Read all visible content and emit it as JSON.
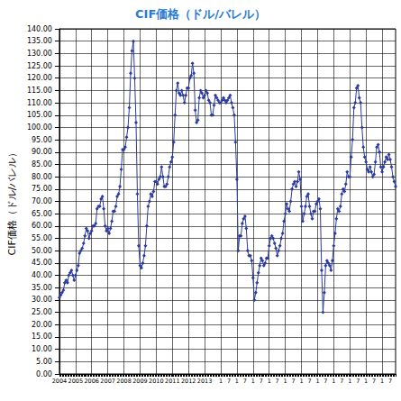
{
  "chart_data": {
    "type": "line",
    "title": "CIF価格（ドル/バレル）",
    "ylabel": "CIF価格（ドル/バレル）",
    "color": "#2b3a9e",
    "marker": "diamond",
    "grid": true,
    "ylim": [
      0,
      140
    ],
    "yticks": [
      {
        "value": 0,
        "label": "0.00"
      },
      {
        "value": 5,
        "label": "5.00"
      },
      {
        "value": 10,
        "label": "10.00"
      },
      {
        "value": 15,
        "label": "15.00"
      },
      {
        "value": 20,
        "label": "20.00"
      },
      {
        "value": 25,
        "label": "25.00"
      },
      {
        "value": 30,
        "label": "30.00"
      },
      {
        "value": 35,
        "label": "35.00"
      },
      {
        "value": 40,
        "label": "40.00"
      },
      {
        "value": 45,
        "label": "45.00"
      },
      {
        "value": 50,
        "label": "50.00"
      },
      {
        "value": 55,
        "label": "55.00"
      },
      {
        "value": 60,
        "label": "60.00"
      },
      {
        "value": 65,
        "label": "65.00"
      },
      {
        "value": 70,
        "label": "70.00"
      },
      {
        "value": 75,
        "label": "75.00"
      },
      {
        "value": 80,
        "label": "80.00"
      },
      {
        "value": 85,
        "label": "85.00"
      },
      {
        "value": 90,
        "label": "90.00"
      },
      {
        "value": 95,
        "label": "95.00"
      },
      {
        "value": 100,
        "label": "100.00"
      },
      {
        "value": 105,
        "label": "105.00"
      },
      {
        "value": 110,
        "label": "110.00"
      },
      {
        "value": 115,
        "label": "115.00"
      },
      {
        "value": 120,
        "label": "120.00"
      },
      {
        "value": 125,
        "label": "125.00"
      },
      {
        "value": 130,
        "label": "130.00"
      },
      {
        "value": 135,
        "label": "135.00"
      },
      {
        "value": 140,
        "label": "140.00"
      }
    ],
    "categories": [
      "2004",
      null,
      null,
      null,
      null,
      null,
      null,
      null,
      null,
      null,
      null,
      null,
      "2005",
      null,
      null,
      null,
      null,
      null,
      null,
      null,
      null,
      null,
      null,
      null,
      "2006",
      null,
      null,
      null,
      null,
      null,
      null,
      null,
      null,
      null,
      null,
      null,
      "2007",
      null,
      null,
      null,
      null,
      null,
      null,
      null,
      null,
      null,
      null,
      null,
      "2008",
      null,
      null,
      null,
      null,
      null,
      null,
      null,
      null,
      null,
      null,
      null,
      "2009",
      null,
      null,
      null,
      null,
      null,
      null,
      null,
      null,
      null,
      null,
      null,
      "2010",
      null,
      null,
      null,
      null,
      null,
      null,
      null,
      null,
      null,
      null,
      null,
      "2011",
      null,
      null,
      null,
      null,
      null,
      null,
      null,
      null,
      null,
      null,
      null,
      "2012",
      null,
      null,
      null,
      null,
      null,
      null,
      null,
      null,
      null,
      null,
      null,
      "2013",
      null,
      null,
      null,
      null,
      null,
      null,
      null,
      null,
      null,
      null,
      null,
      "1",
      null,
      null,
      null,
      null,
      null,
      "7",
      null,
      null,
      null,
      null,
      null,
      "1",
      null,
      null,
      null,
      null,
      null,
      "7",
      null,
      null,
      null,
      null,
      null,
      "1",
      null,
      null,
      null,
      null,
      null,
      "7",
      null,
      null,
      null,
      null,
      null,
      "1",
      null,
      null,
      null,
      null,
      null,
      "7",
      null,
      null,
      null,
      null,
      null,
      "1",
      null,
      null,
      null,
      null,
      null,
      "7",
      null,
      null,
      null,
      null,
      null,
      "1",
      null,
      null,
      null,
      null,
      null,
      "7",
      null,
      null,
      null,
      null,
      null,
      "1",
      null,
      null,
      null,
      null,
      null,
      "7",
      null,
      null,
      null,
      null,
      null,
      "1",
      null,
      null,
      null,
      null,
      null,
      "7",
      null,
      null,
      null,
      null,
      null,
      "1",
      null,
      null,
      null,
      null,
      null,
      "7",
      null,
      null,
      null,
      null,
      null,
      "1",
      null,
      null,
      null,
      null,
      null,
      "7",
      null,
      null,
      null,
      null,
      null,
      "1",
      null,
      null,
      null,
      null,
      null,
      "7",
      null,
      null,
      null,
      null
    ],
    "values": [
      31,
      32,
      33,
      34,
      37,
      38,
      37,
      40,
      41,
      42,
      40,
      38,
      40,
      42,
      44,
      49,
      50,
      51,
      53,
      56,
      59,
      58,
      55,
      57,
      58,
      60,
      60,
      61,
      67,
      68,
      68,
      71,
      72,
      67,
      60,
      58,
      59,
      57,
      59,
      62,
      66,
      66,
      68,
      72,
      73,
      76,
      83,
      91,
      91,
      92,
      96,
      100,
      108,
      122,
      131,
      135,
      120,
      102,
      73,
      52,
      44,
      43,
      45,
      48,
      52,
      60,
      68,
      70,
      73,
      72,
      74,
      78,
      78,
      77,
      79,
      80,
      84,
      80,
      76,
      76,
      77,
      80,
      84,
      86,
      88,
      94,
      105,
      115,
      118,
      114,
      113,
      115,
      113,
      110,
      113,
      116,
      116,
      120,
      121,
      126,
      122,
      107,
      102,
      103,
      112,
      115,
      114,
      112,
      113,
      115,
      114,
      111,
      110,
      105,
      105,
      109,
      113,
      112,
      111,
      110,
      110,
      111,
      112,
      111,
      110,
      111,
      112,
      113,
      110,
      108,
      105,
      94,
      79,
      50,
      56,
      56,
      61,
      63,
      64,
      59,
      50,
      48,
      48,
      46,
      39,
      30,
      33,
      37,
      41,
      44,
      47,
      46,
      44,
      45,
      47,
      47,
      52,
      55,
      56,
      55,
      53,
      51,
      48,
      50,
      52,
      55,
      57,
      62,
      65,
      69,
      67,
      66,
      70,
      75,
      77,
      78,
      76,
      78,
      82,
      79,
      68,
      62,
      65,
      68,
      72,
      73,
      68,
      65,
      63,
      66,
      66,
      69,
      70,
      71,
      67,
      42,
      25,
      33,
      44,
      46,
      45,
      44,
      42,
      46,
      52,
      57,
      63,
      67,
      66,
      68,
      73,
      75,
      74,
      77,
      82,
      80,
      80,
      88,
      95,
      108,
      110,
      116,
      117,
      112,
      110,
      100,
      92,
      88,
      86,
      83,
      82,
      84,
      82,
      80,
      81,
      86,
      92,
      93,
      90,
      84,
      82,
      84,
      86,
      88,
      87,
      89,
      87,
      84,
      80,
      78,
      76
    ]
  }
}
